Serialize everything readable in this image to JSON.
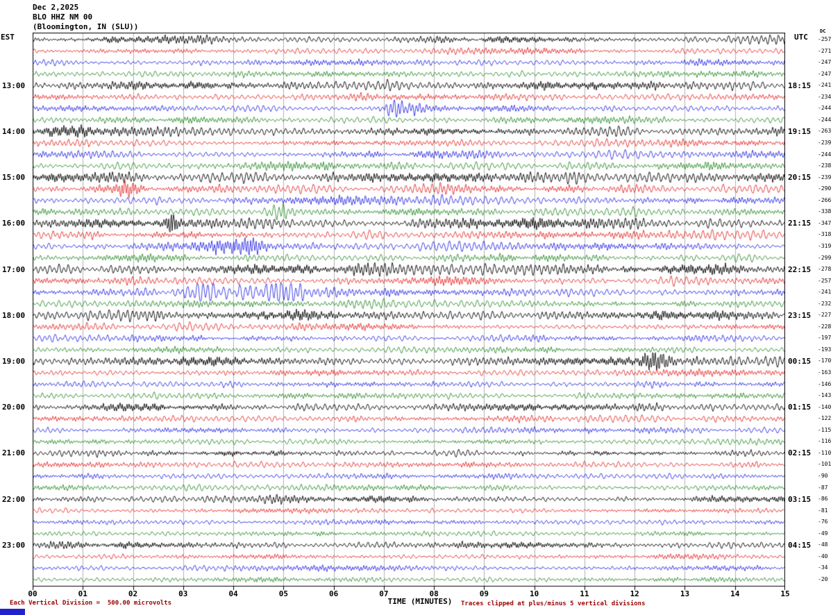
{
  "header": {
    "date": "Dec 2,2025",
    "station": "BLO HHZ NM 00",
    "location": "(Bloomington, IN (SLU))"
  },
  "axes": {
    "left_timezone": "EST",
    "right_timezone": "UTC",
    "dc_header": "DC"
  },
  "footer": {
    "division_note": "Each Vertical Division =  500.00 microvolts",
    "axis_title": "TIME (MINUTES)",
    "clip_note": "Traces clipped at plus/minus 5 vertical divisions"
  },
  "chart_data": {
    "type": "line",
    "subtype": "helicorder-seismogram",
    "title": "BLO HHZ NM 00 (Bloomington, IN (SLU)) Dec 2,2025",
    "xlabel": "TIME (MINUTES)",
    "x_range_minutes": [
      0,
      15
    ],
    "x_ticks": [
      "00",
      "01",
      "02",
      "03",
      "04",
      "05",
      "06",
      "07",
      "08",
      "09",
      "10",
      "11",
      "12",
      "13",
      "14",
      "15"
    ],
    "grid": true,
    "rows": 48,
    "minutes_per_row": 15,
    "row_color_cycle": [
      "#000000",
      "#e00000",
      "#0000e0",
      "#007700"
    ],
    "clip_divisions": 5,
    "microvolts_per_division": 500.0,
    "est_row_labels": [
      {
        "row": 4,
        "label": "13:00"
      },
      {
        "row": 8,
        "label": "14:00"
      },
      {
        "row": 12,
        "label": "15:00"
      },
      {
        "row": 16,
        "label": "16:00"
      },
      {
        "row": 20,
        "label": "17:00"
      },
      {
        "row": 24,
        "label": "18:00"
      },
      {
        "row": 28,
        "label": "19:00"
      },
      {
        "row": 32,
        "label": "20:00"
      },
      {
        "row": 36,
        "label": "21:00"
      },
      {
        "row": 40,
        "label": "22:00"
      },
      {
        "row": 44,
        "label": "23:00"
      }
    ],
    "utc_row_labels": [
      {
        "row": 4,
        "label": "18:15"
      },
      {
        "row": 8,
        "label": "19:15"
      },
      {
        "row": 12,
        "label": "20:15"
      },
      {
        "row": 16,
        "label": "21:15"
      },
      {
        "row": 20,
        "label": "22:15"
      },
      {
        "row": 24,
        "label": "23:15"
      },
      {
        "row": 28,
        "label": "00:15"
      },
      {
        "row": 32,
        "label": "01:15"
      },
      {
        "row": 36,
        "label": "02:15"
      },
      {
        "row": 40,
        "label": "03:15"
      },
      {
        "row": 44,
        "label": "04:15"
      }
    ],
    "dc_offsets": [
      -257,
      -271,
      -247,
      -247,
      -241,
      -234,
      -244,
      -244,
      -263,
      -239,
      -244,
      -238,
      -239,
      -290,
      -266,
      -338,
      -347,
      -318,
      -319,
      -299,
      -278,
      -257,
      -241,
      -232,
      -227,
      -228,
      -197,
      -193,
      -170,
      -163,
      -146,
      -143,
      -140,
      -122,
      -115,
      -116,
      -110,
      -101,
      -90,
      -87,
      -86,
      -81,
      -76,
      -49,
      -48,
      -40,
      -34,
      -20
    ],
    "events": [
      {
        "row": 6,
        "minute": 7.15,
        "width_min": 0.45,
        "gain": 2.6
      },
      {
        "row": 13,
        "minute": 1.9,
        "width_min": 0.25,
        "gain": 1.8
      },
      {
        "row": 15,
        "minute": 4.9,
        "width_min": 0.18,
        "gain": 3.0
      },
      {
        "row": 16,
        "minute": 2.75,
        "width_min": 0.1,
        "gain": 4.5
      },
      {
        "row": 18,
        "minute": 3.9,
        "width_min": 0.6,
        "gain": 2.2
      },
      {
        "row": 22,
        "minute": 4.1,
        "width_min": 1.3,
        "gain": 2.6
      },
      {
        "row": 22,
        "minute": 5.4,
        "width_min": 0.7,
        "gain": 1.8
      },
      {
        "row": 28,
        "minute": 12.4,
        "width_min": 0.3,
        "gain": 1.9
      }
    ]
  }
}
